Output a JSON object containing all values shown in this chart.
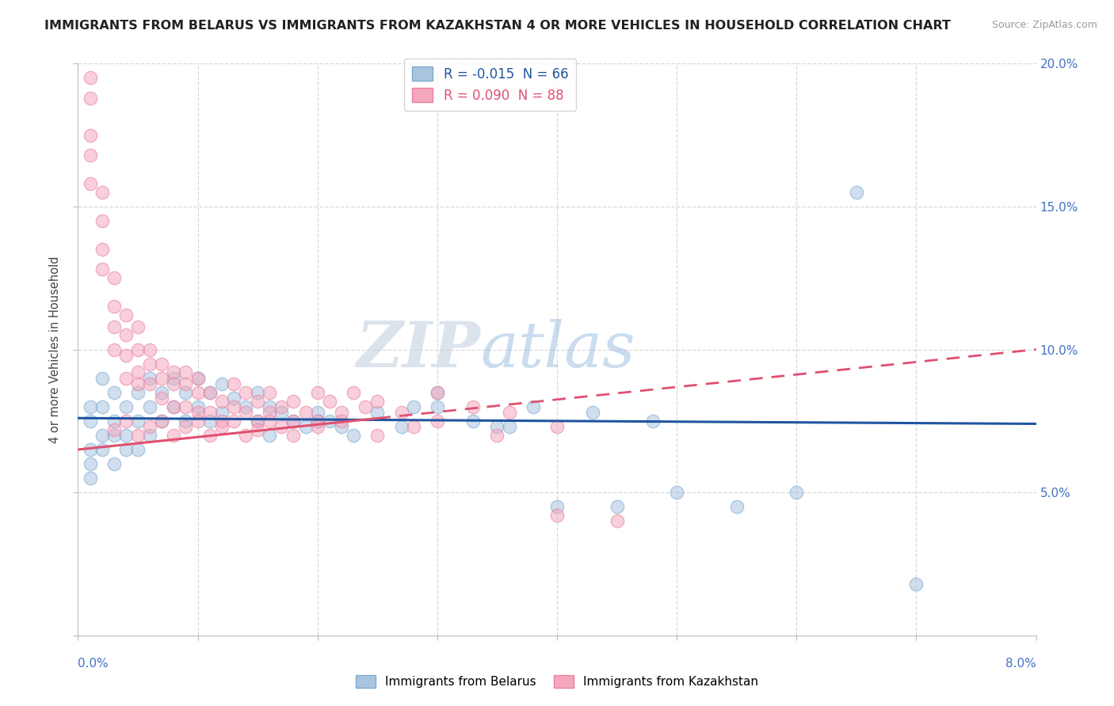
{
  "title": "IMMIGRANTS FROM BELARUS VS IMMIGRANTS FROM KAZAKHSTAN 4 OR MORE VEHICLES IN HOUSEHOLD CORRELATION CHART",
  "source": "Source: ZipAtlas.com",
  "ylabel": "4 or more Vehicles in Household",
  "xmin": 0.0,
  "xmax": 0.08,
  "ymin": 0.0,
  "ymax": 0.2,
  "ytick_vals": [
    0.0,
    0.05,
    0.1,
    0.15,
    0.2
  ],
  "ytick_labels": [
    "",
    "5.0%",
    "10.0%",
    "15.0%",
    "20.0%"
  ],
  "xtick_left_label": "0.0%",
  "xtick_right_label": "8.0%",
  "watermark_zip": "ZIP",
  "watermark_atlas": "atlas",
  "belarus_color": "#aac4e0",
  "kazakhstan_color": "#f4a8be",
  "belarus_edge_color": "#7aaad0",
  "kazakhstan_edge_color": "#e880a0",
  "belarus_line_color": "#2055a0",
  "kazakhstan_line_color": "#e05070",
  "grid_color": "#d8d8d8",
  "background_color": "#ffffff",
  "title_fontsize": 11.5,
  "source_fontsize": 9,
  "tick_fontsize": 11,
  "legend_belarus": "R = -0.015  N = 66",
  "legend_kazakhstan": "R = 0.090  N = 88",
  "bottom_legend_belarus": "Immigrants from Belarus",
  "bottom_legend_kazakhstan": "Immigrants from Kazakhstan",
  "bel_x": [
    0.001,
    0.001,
    0.001,
    0.001,
    0.001,
    0.002,
    0.002,
    0.002,
    0.002,
    0.003,
    0.003,
    0.003,
    0.003,
    0.004,
    0.004,
    0.004,
    0.005,
    0.005,
    0.005,
    0.006,
    0.006,
    0.006,
    0.007,
    0.007,
    0.008,
    0.008,
    0.009,
    0.009,
    0.01,
    0.01,
    0.011,
    0.011,
    0.012,
    0.012,
    0.013,
    0.014,
    0.015,
    0.015,
    0.016,
    0.016,
    0.017,
    0.018,
    0.019,
    0.02,
    0.021,
    0.022,
    0.023,
    0.025,
    0.027,
    0.03,
    0.033,
    0.036,
    0.04,
    0.045,
    0.05,
    0.055,
    0.06,
    0.065,
    0.07,
    0.03,
    0.02,
    0.038,
    0.043,
    0.048,
    0.035,
    0.028
  ],
  "bel_y": [
    0.075,
    0.06,
    0.08,
    0.065,
    0.055,
    0.07,
    0.08,
    0.065,
    0.09,
    0.075,
    0.085,
    0.06,
    0.07,
    0.08,
    0.07,
    0.065,
    0.085,
    0.075,
    0.065,
    0.09,
    0.08,
    0.07,
    0.085,
    0.075,
    0.09,
    0.08,
    0.085,
    0.075,
    0.09,
    0.08,
    0.085,
    0.075,
    0.088,
    0.078,
    0.083,
    0.08,
    0.085,
    0.075,
    0.08,
    0.07,
    0.078,
    0.075,
    0.073,
    0.078,
    0.075,
    0.073,
    0.07,
    0.078,
    0.073,
    0.08,
    0.075,
    0.073,
    0.045,
    0.045,
    0.05,
    0.045,
    0.05,
    0.155,
    0.018,
    0.085,
    0.075,
    0.08,
    0.078,
    0.075,
    0.073,
    0.08
  ],
  "kaz_x": [
    0.001,
    0.001,
    0.001,
    0.001,
    0.001,
    0.002,
    0.002,
    0.002,
    0.002,
    0.003,
    0.003,
    0.003,
    0.003,
    0.004,
    0.004,
    0.004,
    0.004,
    0.005,
    0.005,
    0.005,
    0.005,
    0.006,
    0.006,
    0.006,
    0.007,
    0.007,
    0.007,
    0.008,
    0.008,
    0.008,
    0.009,
    0.009,
    0.009,
    0.01,
    0.01,
    0.01,
    0.011,
    0.011,
    0.012,
    0.012,
    0.013,
    0.013,
    0.014,
    0.014,
    0.015,
    0.015,
    0.016,
    0.016,
    0.017,
    0.017,
    0.018,
    0.018,
    0.019,
    0.02,
    0.02,
    0.021,
    0.022,
    0.023,
    0.024,
    0.025,
    0.027,
    0.03,
    0.033,
    0.036,
    0.04,
    0.045,
    0.003,
    0.004,
    0.005,
    0.006,
    0.007,
    0.008,
    0.009,
    0.01,
    0.011,
    0.012,
    0.013,
    0.014,
    0.015,
    0.016,
    0.018,
    0.02,
    0.022,
    0.025,
    0.028,
    0.03,
    0.035,
    0.04
  ],
  "kaz_y": [
    0.195,
    0.188,
    0.175,
    0.168,
    0.158,
    0.145,
    0.135,
    0.155,
    0.128,
    0.115,
    0.108,
    0.125,
    0.1,
    0.105,
    0.098,
    0.112,
    0.09,
    0.1,
    0.092,
    0.088,
    0.108,
    0.095,
    0.088,
    0.1,
    0.09,
    0.083,
    0.095,
    0.088,
    0.08,
    0.092,
    0.088,
    0.08,
    0.092,
    0.085,
    0.078,
    0.09,
    0.085,
    0.078,
    0.082,
    0.075,
    0.088,
    0.08,
    0.085,
    0.078,
    0.082,
    0.075,
    0.085,
    0.078,
    0.08,
    0.073,
    0.082,
    0.075,
    0.078,
    0.085,
    0.075,
    0.082,
    0.078,
    0.085,
    0.08,
    0.082,
    0.078,
    0.085,
    0.08,
    0.078,
    0.042,
    0.04,
    0.072,
    0.075,
    0.07,
    0.073,
    0.075,
    0.07,
    0.073,
    0.075,
    0.07,
    0.073,
    0.075,
    0.07,
    0.072,
    0.075,
    0.07,
    0.073,
    0.075,
    0.07,
    0.073,
    0.075,
    0.07,
    0.073
  ]
}
